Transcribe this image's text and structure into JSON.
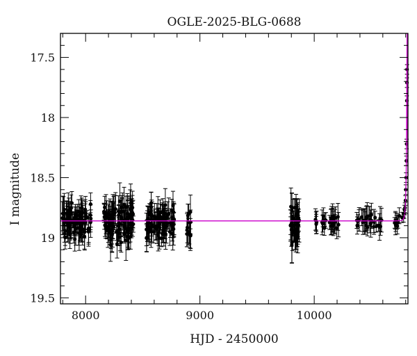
{
  "chart_data": {
    "type": "scatter",
    "title": "OGLE-2025-BLG-0688",
    "xlabel": "HJD - 2450000",
    "ylabel": "I magnitude",
    "xlim": [
      7780,
      10820
    ],
    "ylim": [
      19.55,
      17.3
    ],
    "y_inverted": true,
    "x_ticks": [
      8000,
      9000,
      10000
    ],
    "x_tick_labels": [
      "8000",
      "9000",
      "10000"
    ],
    "y_ticks": [
      17.5,
      18,
      18.5,
      19,
      19.5
    ],
    "y_tick_labels": [
      "17.5",
      "18",
      "18.5",
      "19",
      "19.5"
    ],
    "grid": false,
    "series": [
      {
        "kind": "points_with_errorbars",
        "color": "#000000",
        "segments": [
          {
            "x_range": [
              7790,
              8050
            ],
            "mag_mean": 18.87,
            "mag_scatter": 0.12,
            "err": 0.1,
            "count": 90
          },
          {
            "x_range": [
              8160,
              8420
            ],
            "mag_mean": 18.87,
            "mag_scatter": 0.13,
            "err": 0.11,
            "count": 100
          },
          {
            "x_range": [
              8530,
              8780
            ],
            "mag_mean": 18.87,
            "mag_scatter": 0.12,
            "err": 0.1,
            "count": 85
          },
          {
            "x_range": [
              8880,
              8920
            ],
            "mag_mean": 18.9,
            "mag_scatter": 0.1,
            "err": 0.1,
            "count": 12
          },
          {
            "x_range": [
              9790,
              9870
            ],
            "mag_mean": 18.87,
            "mag_scatter": 0.13,
            "err": 0.12,
            "count": 40
          },
          {
            "x_range": [
              9990,
              10220
            ],
            "mag_mean": 18.87,
            "mag_scatter": 0.05,
            "err": 0.08,
            "count": 28
          },
          {
            "x_range": [
              10350,
              10590
            ],
            "mag_mean": 18.86,
            "mag_scatter": 0.06,
            "err": 0.08,
            "count": 30
          },
          {
            "x_range": [
              10700,
              10775
            ],
            "mag_mean": 18.86,
            "mag_scatter": 0.05,
            "err": 0.07,
            "count": 10
          }
        ],
        "rising_points": [
          {
            "x": 10782,
            "y": 18.83
          },
          {
            "x": 10786,
            "y": 18.8
          },
          {
            "x": 10790,
            "y": 18.77
          },
          {
            "x": 10794,
            "y": 18.75
          },
          {
            "x": 10798,
            "y": 18.69
          },
          {
            "x": 10801,
            "y": 18.6
          },
          {
            "x": 10804,
            "y": 18.5
          },
          {
            "x": 10806,
            "y": 18.36
          },
          {
            "x": 10808,
            "y": 18.22
          },
          {
            "x": 10810,
            "y": 17.86
          },
          {
            "x": 10811,
            "y": 17.71
          },
          {
            "x": 10812,
            "y": 17.6
          }
        ]
      },
      {
        "kind": "model_line",
        "color": "#cc00cc",
        "baseline_mag": 18.86,
        "peak_x": 10812,
        "peak_mag": 17.57,
        "tE": 12
      }
    ]
  }
}
